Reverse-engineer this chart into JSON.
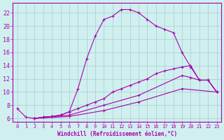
{
  "xlabel": "Windchill (Refroidissement éolien,°C)",
  "background_color": "#d0f0f0",
  "line_color": "#aa00aa",
  "grid_color": "#aacccc",
  "xlim": [
    -0.5,
    23.5
  ],
  "ylim": [
    5.5,
    23.5
  ],
  "yticks": [
    6,
    8,
    10,
    12,
    14,
    16,
    18,
    20,
    22
  ],
  "xticks": [
    0,
    1,
    2,
    3,
    4,
    5,
    6,
    7,
    8,
    9,
    10,
    11,
    12,
    13,
    14,
    15,
    16,
    17,
    18,
    19,
    20,
    21,
    22,
    23
  ],
  "curve1_x": [
    0,
    1,
    2,
    3,
    4,
    5,
    6,
    7,
    8,
    9,
    10,
    11,
    12,
    13,
    14,
    15,
    16,
    17,
    18,
    19,
    20,
    21,
    22,
    23
  ],
  "curve1_y": [
    7.5,
    6.2,
    6.0,
    6.2,
    6.3,
    6.5,
    7.0,
    10.5,
    15.0,
    18.5,
    21.0,
    21.5,
    22.5,
    22.5,
    22.0,
    21.0,
    20.0,
    19.5,
    19.0,
    16.0,
    13.8,
    11.8,
    11.8,
    10.0
  ],
  "curve2_x": [
    2,
    3,
    4,
    5,
    6,
    7,
    8,
    9,
    10,
    11,
    12,
    13,
    14,
    15,
    16,
    17,
    18,
    19,
    20,
    21,
    22,
    23
  ],
  "curve2_y": [
    6.0,
    6.2,
    6.3,
    6.5,
    7.0,
    7.5,
    8.0,
    8.5,
    9.0,
    10.0,
    10.5,
    11.0,
    11.5,
    12.0,
    12.8,
    13.2,
    13.5,
    13.8,
    14.0,
    11.8,
    11.8,
    10.0
  ],
  "curve3_x": [
    2,
    6,
    10,
    14,
    19,
    20,
    21,
    22,
    23
  ],
  "curve3_y": [
    6.0,
    6.5,
    8.0,
    9.5,
    12.5,
    12.2,
    11.8,
    11.8,
    10.0
  ],
  "curve4_x": [
    2,
    6,
    10,
    14,
    19,
    23
  ],
  "curve4_y": [
    6.0,
    6.3,
    7.2,
    8.5,
    10.5,
    10.0
  ]
}
